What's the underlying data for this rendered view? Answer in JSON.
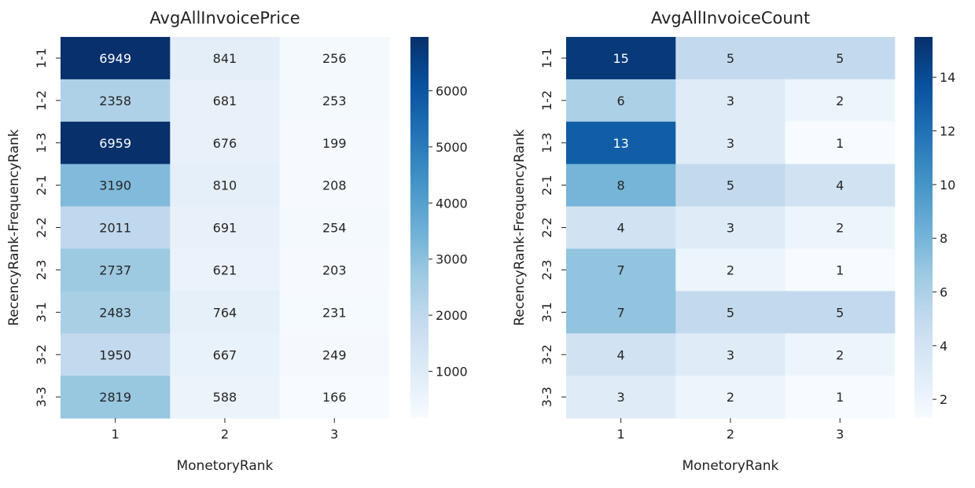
{
  "chart_data": [
    {
      "type": "heatmap",
      "title": "AvgAllInvoicePrice",
      "xlabel": "MonetoryRank",
      "ylabel": "RecencyRank-FrequencyRank",
      "x_categories": [
        "1",
        "2",
        "3"
      ],
      "y_categories": [
        "1-1",
        "1-2",
        "1-3",
        "2-1",
        "2-2",
        "2-3",
        "3-1",
        "3-2",
        "3-3"
      ],
      "values": [
        [
          6949,
          841,
          256
        ],
        [
          2358,
          681,
          253
        ],
        [
          6959,
          676,
          199
        ],
        [
          3190,
          810,
          208
        ],
        [
          2011,
          691,
          254
        ],
        [
          2737,
          621,
          203
        ],
        [
          2483,
          764,
          231
        ],
        [
          1950,
          667,
          249
        ],
        [
          2819,
          588,
          166
        ]
      ],
      "colormap": "Blues",
      "colorbar_range": [
        166,
        6959
      ],
      "colorbar_ticks": [
        1000,
        2000,
        3000,
        4000,
        5000,
        6000
      ]
    },
    {
      "type": "heatmap",
      "title": "AvgAllInvoiceCount",
      "xlabel": "MonetoryRank",
      "ylabel": "RecencyRank-FrequencyRank",
      "x_categories": [
        "1",
        "2",
        "3"
      ],
      "y_categories": [
        "1-1",
        "1-2",
        "1-3",
        "2-1",
        "2-2",
        "2-3",
        "3-1",
        "3-2",
        "3-3"
      ],
      "values": [
        [
          15,
          5,
          5
        ],
        [
          6,
          3,
          2
        ],
        [
          13,
          3,
          1
        ],
        [
          8,
          5,
          4
        ],
        [
          4,
          3,
          2
        ],
        [
          7,
          2,
          1
        ],
        [
          7,
          5,
          5
        ],
        [
          4,
          3,
          2
        ],
        [
          3,
          2,
          1
        ]
      ],
      "display_values": [
        [
          "15",
          "5",
          "5"
        ],
        [
          "6",
          "3",
          "2"
        ],
        [
          "13",
          "3",
          "1"
        ],
        [
          "8",
          "5",
          "4"
        ],
        [
          "4",
          "3",
          "2"
        ],
        [
          "7",
          "2",
          "1"
        ],
        [
          "7",
          "5",
          "5"
        ],
        [
          "4",
          "3",
          "2"
        ],
        [
          "3",
          "2",
          "1"
        ]
      ],
      "colormap": "Blues",
      "colorbar_range": [
        1.3,
        15.5
      ],
      "colorbar_ticks": [
        2,
        4,
        6,
        8,
        10,
        12,
        14
      ]
    }
  ]
}
